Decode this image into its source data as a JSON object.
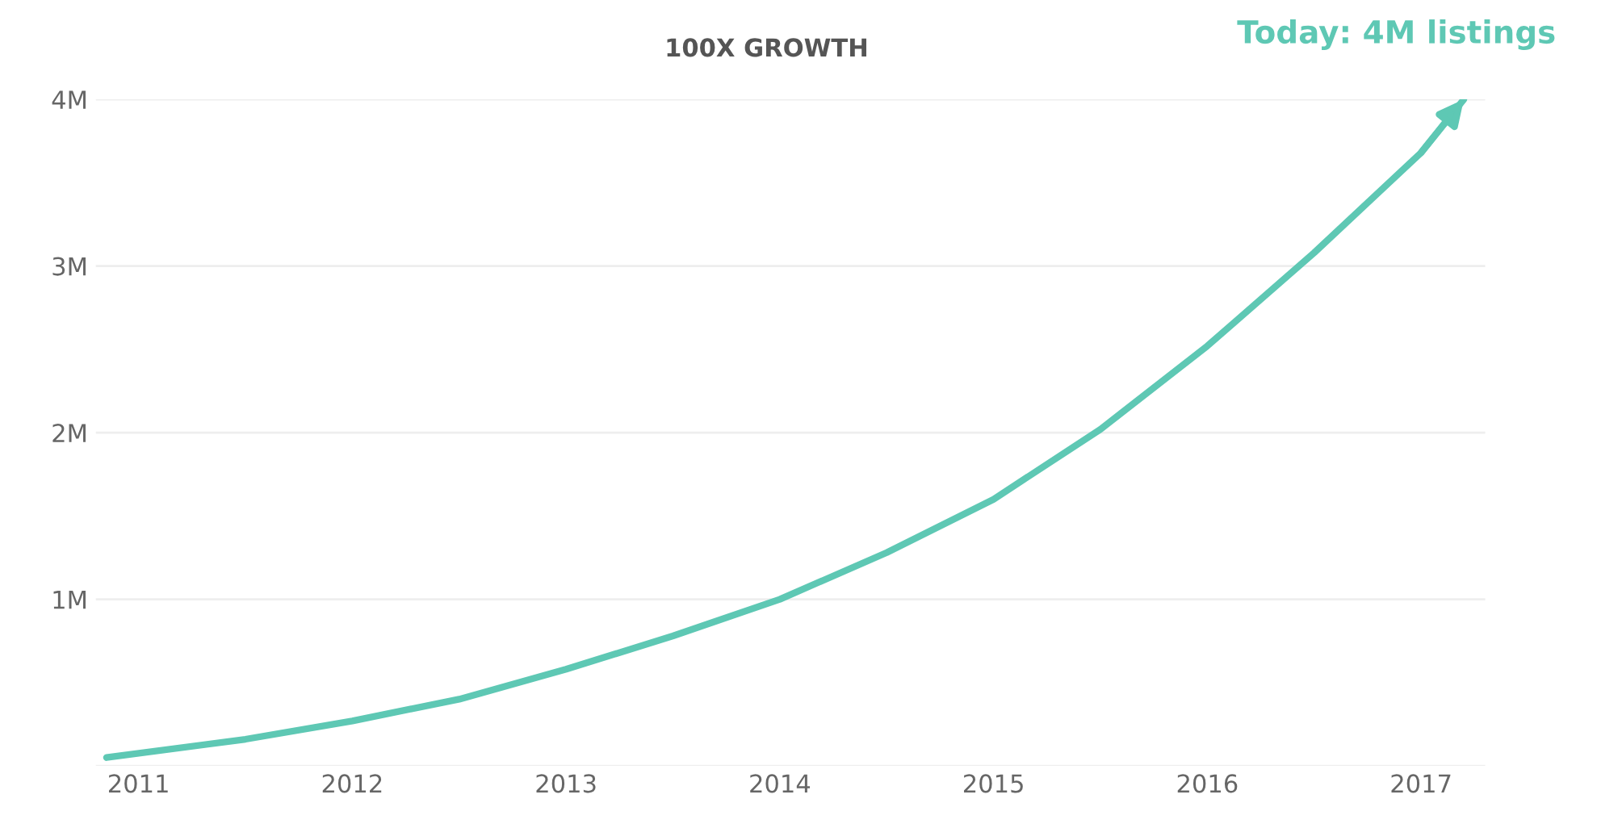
{
  "chart_data": {
    "type": "line",
    "title": "100X GROWTH",
    "x": [
      2010.85,
      2011.5,
      2012,
      2012.5,
      2013,
      2013.5,
      2014,
      2014.5,
      2015,
      2015.5,
      2016,
      2016.5,
      2017,
      2017.2
    ],
    "series": [
      {
        "color": "#5ec8b4",
        "values": [
          0.05,
          0.16,
          0.27,
          0.4,
          0.58,
          0.78,
          1.0,
          1.28,
          1.6,
          2.02,
          2.52,
          3.08,
          3.68,
          4.0
        ]
      }
    ],
    "xlim": [
      2010.8,
      2017.3
    ],
    "xticks": [
      2011,
      2012,
      2013,
      2014,
      2015,
      2016,
      2017
    ],
    "ylim": [
      0,
      4
    ],
    "yticks": [
      {
        "value": 0,
        "label": null
      },
      {
        "value": 1,
        "label": "1M"
      },
      {
        "value": 2,
        "label": "2M"
      },
      {
        "value": 3,
        "label": "3M"
      },
      {
        "value": 4,
        "label": "4M"
      }
    ],
    "grid": "y",
    "marker": "none",
    "line_style": "solid",
    "annotations": [
      {
        "text": "Today: 4M listings",
        "x": 2017.2,
        "y": 4.0
      }
    ]
  }
}
